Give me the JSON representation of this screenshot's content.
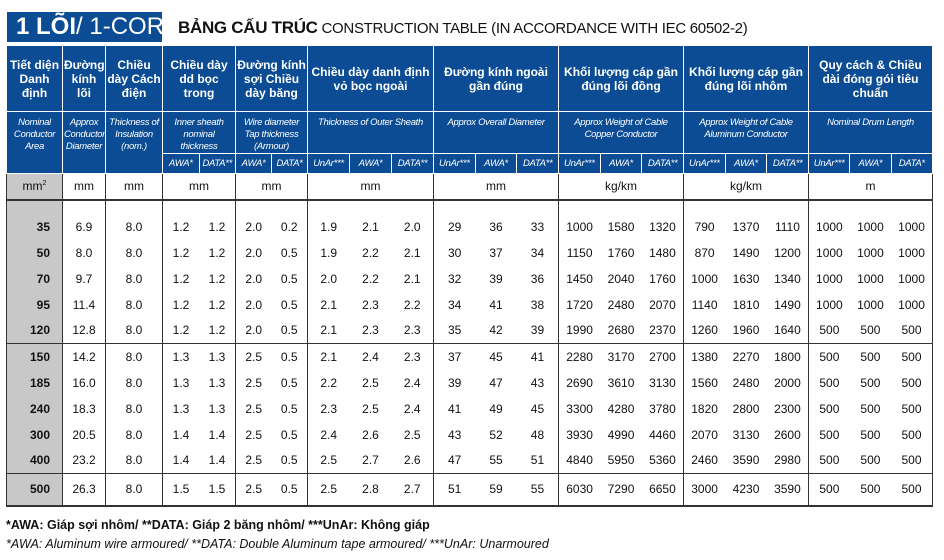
{
  "title": {
    "bold": "1 LÕI",
    "rest": "/ 1-CORE"
  },
  "subtitle": {
    "bold": "BẢNG CẤU TRÚC",
    "rest": " CONSTRUCTION TABLE (IN ACCORDANCE WITH IEC 60502-2)"
  },
  "headers": [
    {
      "vi": "Tiết diện Danh định",
      "en": "Nominal Conductor Area",
      "unit": "mm²",
      "sub": []
    },
    {
      "vi": "Đường kính lõi",
      "en": "Approx Conductor Diameter",
      "unit": "mm",
      "sub": []
    },
    {
      "vi": "Chiều dày Cách điện",
      "en": "Thickness of Insulation (nom.)",
      "unit": "mm",
      "sub": []
    },
    {
      "vi": "Chiều dày dd bọc trong",
      "en": "Inner sheath nominal thickness",
      "unit": "mm",
      "sub": [
        "AWA*",
        "DATA**"
      ]
    },
    {
      "vi": "Đường kính sợi Chiều dày băng",
      "en": "Wire diameter Tap thickness (Armour)",
      "unit": "mm",
      "sub": [
        "AWA*",
        "DATA*"
      ]
    },
    {
      "vi": "Chiều dày danh định vỏ bọc ngoài",
      "en": "Thickness of Outer Sheath",
      "unit": "mm",
      "sub": [
        "UnAr***",
        "AWA*",
        "DATA**"
      ]
    },
    {
      "vi": "Đường kính ngoài gần đúng",
      "en": "Approx Overall Diameter",
      "unit": "mm",
      "sub": [
        "UnAr***",
        "AWA*",
        "DATA**"
      ]
    },
    {
      "vi": "Khối lượng cáp gần đúng lõi đồng",
      "en": "Approx Weight of Cable Copper Conductor",
      "unit": "kg/km",
      "sub": [
        "UnAr***",
        "AWA*",
        "DATA**"
      ]
    },
    {
      "vi": "Khối lượng cáp gần đúng lõi nhôm",
      "en": "Approx Weight of Cable Aluminum Conductor",
      "unit": "kg/km",
      "sub": [
        "UnAr***",
        "AWA*",
        "DATA**"
      ]
    },
    {
      "vi": "Quy cách & Chiều dài đóng gói tiêu chuẩn",
      "en": "Nominal Drum Length",
      "unit": "m",
      "sub": [
        "UnAr***",
        "AWA*",
        "DATA*"
      ]
    }
  ],
  "groups": [
    [
      [
        "35",
        "6.9",
        "8.0",
        "1.2",
        "1.2",
        "2.0",
        "0.2",
        "1.9",
        "2.1",
        "2.0",
        "29",
        "36",
        "33",
        "1000",
        "1580",
        "1320",
        "790",
        "1370",
        "1110",
        "1000",
        "1000",
        "1000"
      ],
      [
        "50",
        "8.0",
        "8.0",
        "1.2",
        "1.2",
        "2.0",
        "0.5",
        "1.9",
        "2.2",
        "2.1",
        "30",
        "37",
        "34",
        "1150",
        "1760",
        "1480",
        "870",
        "1490",
        "1200",
        "1000",
        "1000",
        "1000"
      ],
      [
        "70",
        "9.7",
        "8.0",
        "1.2",
        "1.2",
        "2.0",
        "0.5",
        "2.0",
        "2.2",
        "2.1",
        "32",
        "39",
        "36",
        "1450",
        "2040",
        "1760",
        "1000",
        "1630",
        "1340",
        "1000",
        "1000",
        "1000"
      ],
      [
        "95",
        "11.4",
        "8.0",
        "1.2",
        "1.2",
        "2.0",
        "0.5",
        "2.1",
        "2.3",
        "2.2",
        "34",
        "41",
        "38",
        "1720",
        "2480",
        "2070",
        "1140",
        "1810",
        "1490",
        "1000",
        "1000",
        "1000"
      ],
      [
        "120",
        "12.8",
        "8.0",
        "1.2",
        "1.2",
        "2.0",
        "0.5",
        "2.1",
        "2.3",
        "2.3",
        "35",
        "42",
        "39",
        "1990",
        "2680",
        "2370",
        "1260",
        "1960",
        "1640",
        "500",
        "500",
        "500"
      ]
    ],
    [
      [
        "150",
        "14.2",
        "8.0",
        "1.3",
        "1.3",
        "2.5",
        "0.5",
        "2.1",
        "2.4",
        "2.3",
        "37",
        "45",
        "41",
        "2280",
        "3170",
        "2700",
        "1380",
        "2270",
        "1800",
        "500",
        "500",
        "500"
      ],
      [
        "185",
        "16.0",
        "8.0",
        "1.3",
        "1.3",
        "2.5",
        "0.5",
        "2.2",
        "2.5",
        "2.4",
        "39",
        "47",
        "43",
        "2690",
        "3610",
        "3130",
        "1560",
        "2480",
        "2000",
        "500",
        "500",
        "500"
      ],
      [
        "240",
        "18.3",
        "8.0",
        "1.3",
        "1.3",
        "2.5",
        "0.5",
        "2.3",
        "2.5",
        "2.4",
        "41",
        "49",
        "45",
        "3300",
        "4280",
        "3780",
        "1820",
        "2800",
        "2300",
        "500",
        "500",
        "500"
      ],
      [
        "300",
        "20.5",
        "8.0",
        "1.4",
        "1.4",
        "2.5",
        "0.5",
        "2.4",
        "2.6",
        "2.5",
        "43",
        "52",
        "48",
        "3930",
        "4990",
        "4460",
        "2070",
        "3130",
        "2600",
        "500",
        "500",
        "500"
      ],
      [
        "400",
        "23.2",
        "8.0",
        "1.4",
        "1.4",
        "2.5",
        "0.5",
        "2.5",
        "2.7",
        "2.6",
        "47",
        "55",
        "51",
        "4840",
        "5950",
        "5360",
        "2460",
        "3590",
        "2980",
        "500",
        "500",
        "500"
      ]
    ],
    [
      [
        "500",
        "26.3",
        "8.0",
        "1.5",
        "1.5",
        "2.5",
        "0.5",
        "2.5",
        "2.8",
        "2.7",
        "51",
        "59",
        "55",
        "6030",
        "7290",
        "6650",
        "3000",
        "4230",
        "3590",
        "500",
        "500",
        "500"
      ]
    ]
  ],
  "notes": {
    "vi": "*AWA: Giáp sợi nhôm/ **DATA: Giáp 2 băng nhôm/ ***UnAr: Không giáp",
    "en": "*AWA: Aluminum wire armoured/ **DATA: Double Aluminum tape armoured/ ***UnAr: Unarmoured"
  },
  "colors": {
    "header": "#0b4c94",
    "area_col": "#c8c8c8"
  }
}
